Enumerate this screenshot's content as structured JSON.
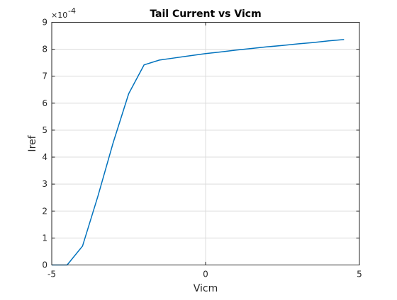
{
  "chart_data": {
    "type": "line",
    "title": "Tail Current vs Vicm",
    "xlabel": "Vicm",
    "ylabel": "Iref",
    "xlim": [
      -5,
      5
    ],
    "ylim": [
      0,
      9
    ],
    "y_exponent_base": "×10",
    "y_exponent_power": "-4",
    "x_ticks": [
      -5,
      0,
      5
    ],
    "x_tick_labels": [
      "-5",
      "0",
      "5"
    ],
    "y_ticks": [
      0,
      1,
      2,
      3,
      4,
      5,
      6,
      7,
      8,
      9
    ],
    "y_tick_labels": [
      "0",
      "1",
      "2",
      "3",
      "4",
      "5",
      "6",
      "7",
      "8",
      "9"
    ],
    "grid": true,
    "line_color": "#0072bd",
    "series": [
      {
        "x": [
          -5,
          -4.5,
          -4,
          -3.5,
          -3,
          -2.5,
          -2,
          -1.5,
          -1,
          -0.5,
          0,
          0.5,
          1,
          1.5,
          2,
          2.5,
          3,
          3.5,
          4,
          4.5
        ],
        "y": [
          0.0,
          0.0,
          0.7,
          2.55,
          4.55,
          6.35,
          7.42,
          7.6,
          7.68,
          7.76,
          7.84,
          7.9,
          7.97,
          8.03,
          8.09,
          8.14,
          8.2,
          8.25,
          8.31,
          8.36
        ]
      }
    ]
  }
}
